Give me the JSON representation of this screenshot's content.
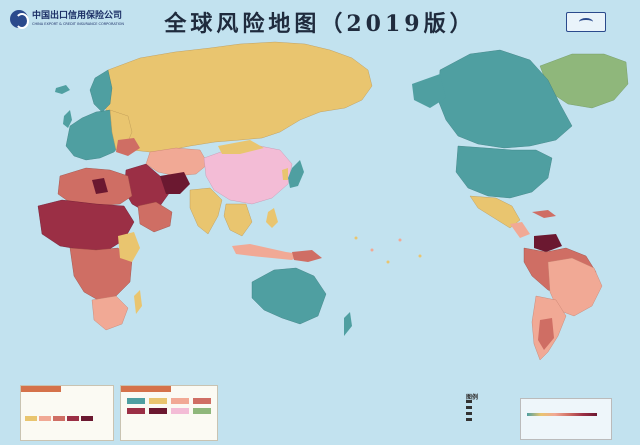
{
  "header": {
    "title": "全球风险地图（2019版）",
    "org_name_cn": "中国出口信用保险公司",
    "org_name_en": "CHINA EXPORT & CREDIT INSURANCE CORPORATION"
  },
  "legend": {
    "title": "图例"
  },
  "risk_colors": {
    "low": "#4f9fa1",
    "medium_low": "#e9c56f",
    "medium": "#f1a995",
    "medium_high": "#cf6e64",
    "high": "#9b2f45",
    "very_high": "#6b1830",
    "special": "#f3bcd6",
    "greenland": "#8fb77b",
    "ocean": "#c2e2ef"
  }
}
